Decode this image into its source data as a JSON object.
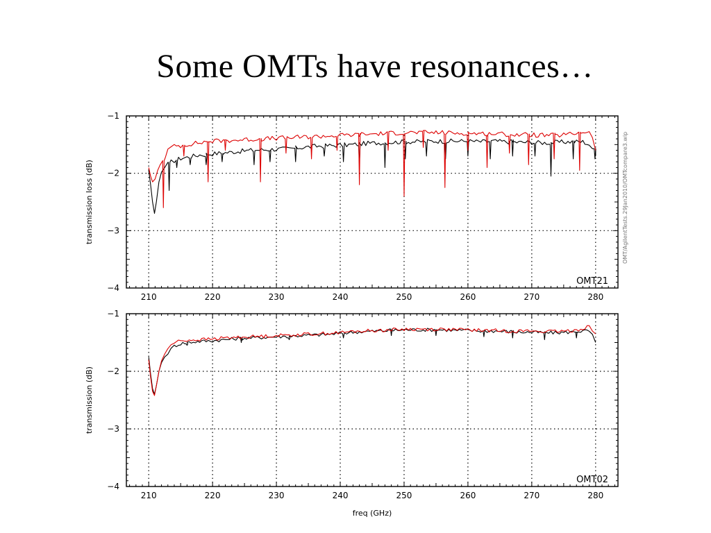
{
  "slide": {
    "title": "Some OMTs have resonances…"
  },
  "side_note": "OMT/AgilentTests.29Jan2010/OMTcompare3.wip",
  "colors": {
    "series_black": "#000000",
    "series_red": "#dd0000",
    "grid": "#000000"
  },
  "chart_data": [
    {
      "type": "line",
      "label": "OMT21",
      "ylabel": "transmission loss (dB)",
      "xlabel": "",
      "xlim": [
        206.5,
        283.5
      ],
      "ylim": [
        -4,
        -1
      ],
      "xticks": [
        210,
        220,
        230,
        240,
        250,
        260,
        270,
        280
      ],
      "yticks": [
        -1,
        -2,
        -3,
        -4
      ],
      "grid": true,
      "series": [
        {
          "color": "black",
          "x": [
            210.0,
            210.3,
            210.6,
            210.9,
            211.2,
            211.6,
            212.0,
            212.5,
            213.0,
            213.5,
            214,
            215,
            216,
            217,
            218,
            219,
            220,
            222,
            224,
            226,
            228,
            230,
            232,
            234,
            236,
            238,
            240,
            242,
            244,
            246,
            248,
            250,
            252,
            254,
            256,
            258,
            260,
            262,
            264,
            266,
            268,
            270,
            272,
            274,
            276,
            278,
            279,
            279.5,
            280.0
          ],
          "y": [
            -1.95,
            -2.2,
            -2.5,
            -2.7,
            -2.5,
            -2.15,
            -1.98,
            -1.9,
            -1.84,
            -1.8,
            -1.78,
            -1.74,
            -1.72,
            -1.7,
            -1.68,
            -1.67,
            -1.66,
            -1.64,
            -1.62,
            -1.6,
            -1.59,
            -1.58,
            -1.57,
            -1.55,
            -1.53,
            -1.52,
            -1.51,
            -1.5,
            -1.48,
            -1.47,
            -1.46,
            -1.45,
            -1.45,
            -1.44,
            -1.44,
            -1.44,
            -1.44,
            -1.45,
            -1.44,
            -1.45,
            -1.46,
            -1.46,
            -1.47,
            -1.46,
            -1.45,
            -1.45,
            -1.5,
            -1.6,
            -1.7
          ],
          "dips": [
            {
              "x": 213.2,
              "y": -2.3
            },
            {
              "x": 214.4,
              "y": -1.9
            },
            {
              "x": 216.5,
              "y": -1.85
            },
            {
              "x": 219.0,
              "y": -1.85
            },
            {
              "x": 221.5,
              "y": -1.8
            },
            {
              "x": 226.5,
              "y": -1.85
            },
            {
              "x": 229.0,
              "y": -1.8
            },
            {
              "x": 233.0,
              "y": -1.8
            },
            {
              "x": 237.5,
              "y": -1.7
            },
            {
              "x": 240.5,
              "y": -1.8
            },
            {
              "x": 243.0,
              "y": -1.85
            },
            {
              "x": 247.0,
              "y": -1.9
            },
            {
              "x": 250.2,
              "y": -1.75
            },
            {
              "x": 253.5,
              "y": -1.7
            },
            {
              "x": 256.5,
              "y": -1.75
            },
            {
              "x": 260.0,
              "y": -1.7
            },
            {
              "x": 263.5,
              "y": -1.75
            },
            {
              "x": 267.0,
              "y": -1.7
            },
            {
              "x": 270.5,
              "y": -1.7
            },
            {
              "x": 273.0,
              "y": -2.05
            },
            {
              "x": 276.5,
              "y": -1.75
            },
            {
              "x": 279.9,
              "y": -1.75
            }
          ]
        },
        {
          "color": "red",
          "x": [
            210.0,
            210.3,
            210.6,
            211.0,
            211.4,
            211.8,
            212.2,
            212.6,
            213.0,
            213.5,
            214,
            215,
            216,
            217,
            218,
            219,
            220,
            222,
            224,
            226,
            228,
            230,
            232,
            234,
            236,
            238,
            240,
            242,
            244,
            246,
            248,
            250,
            252,
            254,
            256,
            258,
            260,
            262,
            264,
            266,
            268,
            270,
            272,
            274,
            276,
            278,
            279,
            279.5,
            280.0
          ],
          "y": [
            -1.9,
            -2.05,
            -2.15,
            -2.1,
            -1.95,
            -1.85,
            -1.78,
            -1.7,
            -1.6,
            -1.55,
            -1.53,
            -1.52,
            -1.5,
            -1.48,
            -1.47,
            -1.45,
            -1.44,
            -1.43,
            -1.42,
            -1.41,
            -1.4,
            -1.39,
            -1.38,
            -1.37,
            -1.36,
            -1.35,
            -1.34,
            -1.33,
            -1.32,
            -1.31,
            -1.3,
            -1.29,
            -1.29,
            -1.29,
            -1.29,
            -1.3,
            -1.3,
            -1.31,
            -1.31,
            -1.32,
            -1.33,
            -1.33,
            -1.34,
            -1.34,
            -1.32,
            -1.28,
            -1.27,
            -1.4,
            -1.6
          ],
          "dips": [
            {
              "x": 212.3,
              "y": -2.6
            },
            {
              "x": 215.5,
              "y": -1.7
            },
            {
              "x": 219.3,
              "y": -2.15
            },
            {
              "x": 222.0,
              "y": -1.6
            },
            {
              "x": 227.5,
              "y": -2.15
            },
            {
              "x": 231.5,
              "y": -1.65
            },
            {
              "x": 235.5,
              "y": -1.75
            },
            {
              "x": 239.5,
              "y": -1.6
            },
            {
              "x": 243.0,
              "y": -2.2
            },
            {
              "x": 247.5,
              "y": -1.6
            },
            {
              "x": 250.0,
              "y": -2.4
            },
            {
              "x": 253.0,
              "y": -1.55
            },
            {
              "x": 256.4,
              "y": -2.25
            },
            {
              "x": 260.0,
              "y": -1.6
            },
            {
              "x": 263.0,
              "y": -1.9
            },
            {
              "x": 266.5,
              "y": -1.65
            },
            {
              "x": 269.5,
              "y": -1.85
            },
            {
              "x": 273.5,
              "y": -1.75
            },
            {
              "x": 277.5,
              "y": -1.95
            }
          ]
        }
      ]
    },
    {
      "type": "line",
      "label": "OMT02",
      "ylabel": "transmission (dB)",
      "xlabel": "freq (GHz)",
      "xlim": [
        206.5,
        283.5
      ],
      "ylim": [
        -4,
        -1
      ],
      "xticks": [
        210,
        220,
        230,
        240,
        250,
        260,
        270,
        280
      ],
      "yticks": [
        -1,
        -2,
        -3,
        -4
      ],
      "grid": true,
      "series": [
        {
          "color": "black",
          "x": [
            210.0,
            210.3,
            210.6,
            210.9,
            211.2,
            211.6,
            212.0,
            212.5,
            213.0,
            213.5,
            214,
            215,
            216,
            218,
            220,
            222,
            224,
            226,
            228,
            230,
            232,
            234,
            236,
            238,
            240,
            242,
            244,
            246,
            248,
            250,
            252,
            254,
            256,
            258,
            260,
            262,
            264,
            266,
            268,
            270,
            272,
            274,
            276,
            278,
            279,
            279.5,
            280.0
          ],
          "y": [
            -1.75,
            -2.05,
            -2.3,
            -2.4,
            -2.25,
            -2.0,
            -1.85,
            -1.75,
            -1.68,
            -1.62,
            -1.56,
            -1.52,
            -1.5,
            -1.48,
            -1.47,
            -1.45,
            -1.43,
            -1.42,
            -1.41,
            -1.4,
            -1.39,
            -1.38,
            -1.37,
            -1.36,
            -1.34,
            -1.32,
            -1.31,
            -1.3,
            -1.29,
            -1.28,
            -1.28,
            -1.28,
            -1.28,
            -1.29,
            -1.29,
            -1.3,
            -1.3,
            -1.31,
            -1.32,
            -1.32,
            -1.33,
            -1.33,
            -1.32,
            -1.3,
            -1.3,
            -1.38,
            -1.5
          ],
          "dips": [
            {
              "x": 216.0,
              "y": -1.55
            },
            {
              "x": 224.5,
              "y": -1.5
            },
            {
              "x": 232.0,
              "y": -1.45
            },
            {
              "x": 240.5,
              "y": -1.42
            },
            {
              "x": 248.0,
              "y": -1.38
            },
            {
              "x": 255.0,
              "y": -1.38
            },
            {
              "x": 262.5,
              "y": -1.4
            },
            {
              "x": 267.0,
              "y": -1.42
            },
            {
              "x": 272.0,
              "y": -1.45
            },
            {
              "x": 277.0,
              "y": -1.42
            }
          ]
        },
        {
          "color": "red",
          "x": [
            210.0,
            210.3,
            210.6,
            210.9,
            211.2,
            211.6,
            212.0,
            212.5,
            213.0,
            213.5,
            214,
            215,
            216,
            218,
            220,
            222,
            224,
            226,
            228,
            230,
            232,
            234,
            236,
            238,
            240,
            242,
            244,
            246,
            248,
            250,
            252,
            254,
            256,
            258,
            260,
            262,
            264,
            266,
            268,
            270,
            272,
            274,
            276,
            278,
            279,
            279.5,
            280.0
          ],
          "y": [
            -1.8,
            -2.1,
            -2.35,
            -2.42,
            -2.25,
            -2.0,
            -1.82,
            -1.7,
            -1.6,
            -1.55,
            -1.5,
            -1.47,
            -1.46,
            -1.45,
            -1.44,
            -1.42,
            -1.41,
            -1.4,
            -1.39,
            -1.38,
            -1.37,
            -1.36,
            -1.35,
            -1.34,
            -1.33,
            -1.31,
            -1.3,
            -1.29,
            -1.28,
            -1.27,
            -1.27,
            -1.27,
            -1.27,
            -1.28,
            -1.28,
            -1.29,
            -1.29,
            -1.3,
            -1.3,
            -1.3,
            -1.31,
            -1.31,
            -1.3,
            -1.26,
            -1.2,
            -1.3,
            -1.35
          ],
          "dips": []
        }
      ]
    }
  ]
}
